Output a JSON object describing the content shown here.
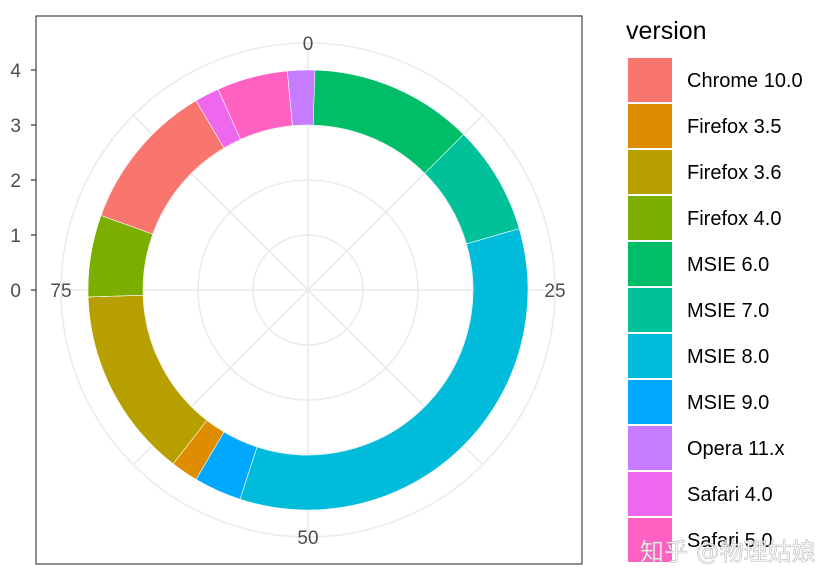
{
  "chart_data": {
    "type": "pie",
    "variant": "donut (polar bar chart)",
    "legend_title": "version",
    "legend_position": "right",
    "theta_axis": {
      "ticks": [
        "0",
        "25",
        "50",
        "75"
      ],
      "range": [
        0,
        100
      ]
    },
    "radius_axis": {
      "ticks": [
        "0",
        "1",
        "2",
        "3",
        "4"
      ]
    },
    "grid": true,
    "slices": [
      {
        "name": "MSIE 6.0",
        "value": 12.5,
        "color": "#00BE67"
      },
      {
        "name": "MSIE 7.0",
        "value": 8.0,
        "color": "#00C19A"
      },
      {
        "name": "MSIE 8.0",
        "value": 34.5,
        "color": "#00BBDA"
      },
      {
        "name": "MSIE 9.0",
        "value": 3.5,
        "color": "#00A9FF"
      },
      {
        "name": "Firefox 3.5",
        "value": 2.0,
        "color": "#DE8C00"
      },
      {
        "name": "Firefox 3.6",
        "value": 14.0,
        "color": "#B79F00"
      },
      {
        "name": "Firefox 4.0",
        "value": 6.0,
        "color": "#7CAE00"
      },
      {
        "name": "Chrome 10.0",
        "value": 11.0,
        "color": "#F8766D"
      },
      {
        "name": "Safari 4.0",
        "value": 1.8,
        "color": "#ED68ED"
      },
      {
        "name": "Safari 5.0",
        "value": 5.2,
        "color": "#FF61C3"
      },
      {
        "name": "Opera 11.x",
        "value": 2.0,
        "color": "#C77CFF"
      }
    ],
    "legend_order": [
      "Chrome 10.0",
      "Firefox 3.5",
      "Firefox 3.6",
      "Firefox 4.0",
      "MSIE 6.0",
      "MSIE 7.0",
      "MSIE 8.0",
      "MSIE 9.0",
      "Opera 11.x",
      "Safari 4.0",
      "Safari 5.0"
    ]
  },
  "watermark": "知乎 @物理姑娘"
}
